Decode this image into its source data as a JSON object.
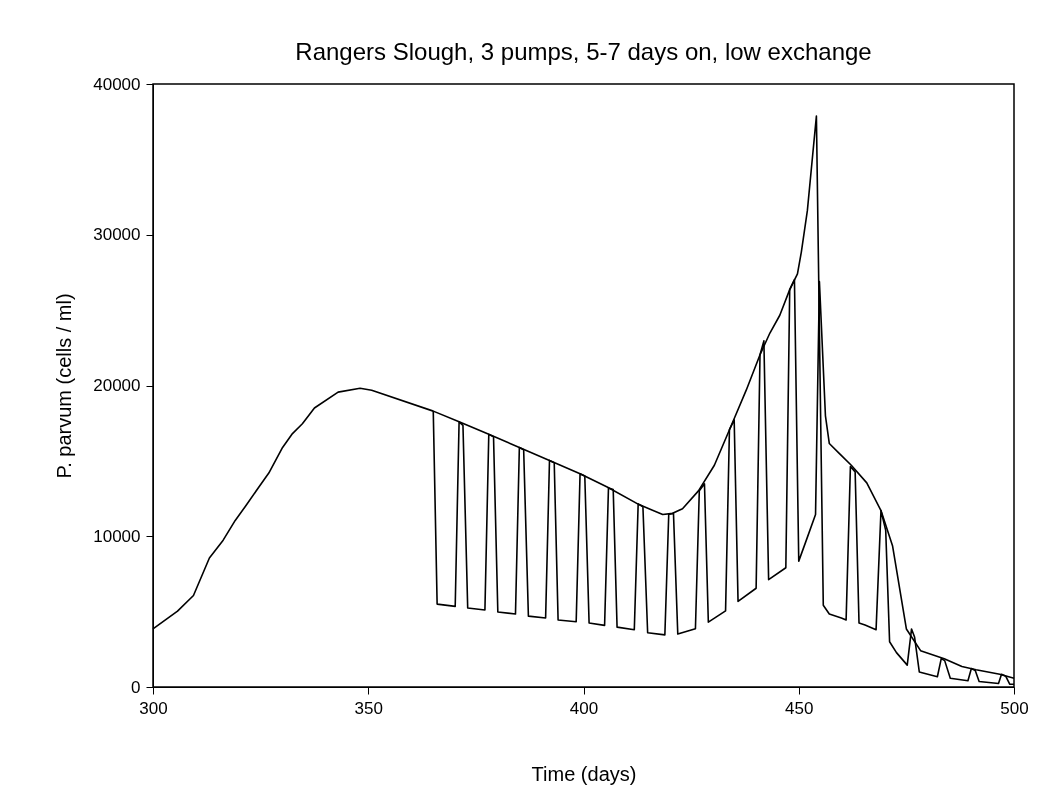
{
  "chart_data": {
    "type": "line",
    "title": "Rangers Slough, 3 pumps, 5-7 days on, low exchange",
    "xlabel": "Time (days)",
    "ylabel": "P. parvum (cells / ml)",
    "xlim": [
      300,
      500
    ],
    "xticks": [
      300,
      350,
      400,
      450,
      500
    ],
    "ylim": [
      0,
      40000
    ],
    "yticks": [
      0,
      10000,
      20000,
      30000,
      40000
    ],
    "grid": false,
    "legend": false,
    "line_style": "solid",
    "marker": "none",
    "series": [
      {
        "color": "#000000",
        "x": [
          300,
          305.7,
          309.4,
          313.1,
          316.3,
          319.1,
          321.4,
          324.6,
          326.9,
          330.1,
          332.4,
          334.7,
          337.5,
          343,
          348.1,
          350.8,
          365.1,
          371.1,
          378,
          385.1,
          392.1,
          399.2,
          405.5,
          412.9,
          418.4,
          420.7,
          423,
          426.7,
          430.4,
          434.5,
          437.8,
          441,
          443.3,
          445.6,
          447.9,
          449.7,
          450.6,
          452,
          454.1,
          455.7,
          457.1,
          459.9,
          461,
          462,
          463.1,
          464,
          465.4,
          467.96,
          469.1,
          470.2,
          471.1,
          472.7,
          475.2,
          476.2,
          476.9,
          478,
          482.2,
          483.1,
          483.9,
          485.2,
          489.3,
          490.1,
          491,
          491.9,
          496.4,
          497.1,
          498.1,
          499,
          500
        ],
        "values": [
          3850,
          5030,
          6070,
          8560,
          9740,
          11050,
          11960,
          13270,
          14190,
          15890,
          16810,
          17460,
          18510,
          19560,
          19820,
          19690,
          18300,
          17590,
          16760,
          15890,
          15030,
          14140,
          13270,
          12100,
          11440,
          11520,
          11830,
          13010,
          14710,
          17460,
          19690,
          22040,
          23480,
          24660,
          26360,
          27410,
          28850,
          31600,
          37880,
          5420,
          4840,
          4580,
          4450,
          14630,
          14270,
          4250,
          4110,
          3800,
          11700,
          10390,
          3000,
          2280,
          1450,
          3850,
          3320,
          1000,
          680,
          1880,
          1750,
          580,
          420,
          1230,
          1100,
          360,
          230,
          840,
          710,
          190,
          180
        ]
      },
      {
        "color": "#000000",
        "x": [
          365.1,
          366,
          370.2,
          371.1,
          372,
          373.1,
          377.1,
          378,
          379.1,
          380.1,
          384.2,
          385.1,
          386.1,
          387.2,
          391.2,
          392.1,
          393.2,
          394.1,
          398.3,
          399.2,
          400.3,
          401.3,
          404.9,
          405.8,
          406.9,
          407.8,
          411.8,
          412.7,
          413.8,
          414.9,
          418.9,
          419.8,
          420.9,
          421.9,
          426,
          426.9,
          428.1,
          429,
          433,
          433.9,
          435,
          435.9,
          440.1,
          441,
          441.9,
          443,
          447,
          447.9,
          449,
          450,
          451.6,
          453.9,
          454.8,
          456.2,
          457.1,
          459.4,
          462.2,
          465.8,
          469.1,
          471.8,
          475,
          478.3,
          483.8,
          487.9,
          491.2,
          496.7,
          500
        ],
        "values": [
          18300,
          5500,
          5350,
          17590,
          17350,
          5240,
          5110,
          16760,
          16600,
          4980,
          4840,
          15890,
          15740,
          4700,
          4580,
          15030,
          14880,
          4440,
          4330,
          14140,
          14000,
          4250,
          4090,
          13200,
          13100,
          3970,
          3800,
          12150,
          11960,
          3600,
          3460,
          11440,
          11520,
          3510,
          3870,
          13010,
          13480,
          4300,
          5050,
          17070,
          17720,
          5680,
          6550,
          22040,
          22960,
          7120,
          7910,
          26360,
          27020,
          8350,
          9610,
          11440,
          26890,
          17990,
          16150,
          15500,
          14710,
          13540,
          11700,
          9350,
          3850,
          2410,
          1880,
          1360,
          1150,
          840,
          580
        ]
      }
    ]
  }
}
